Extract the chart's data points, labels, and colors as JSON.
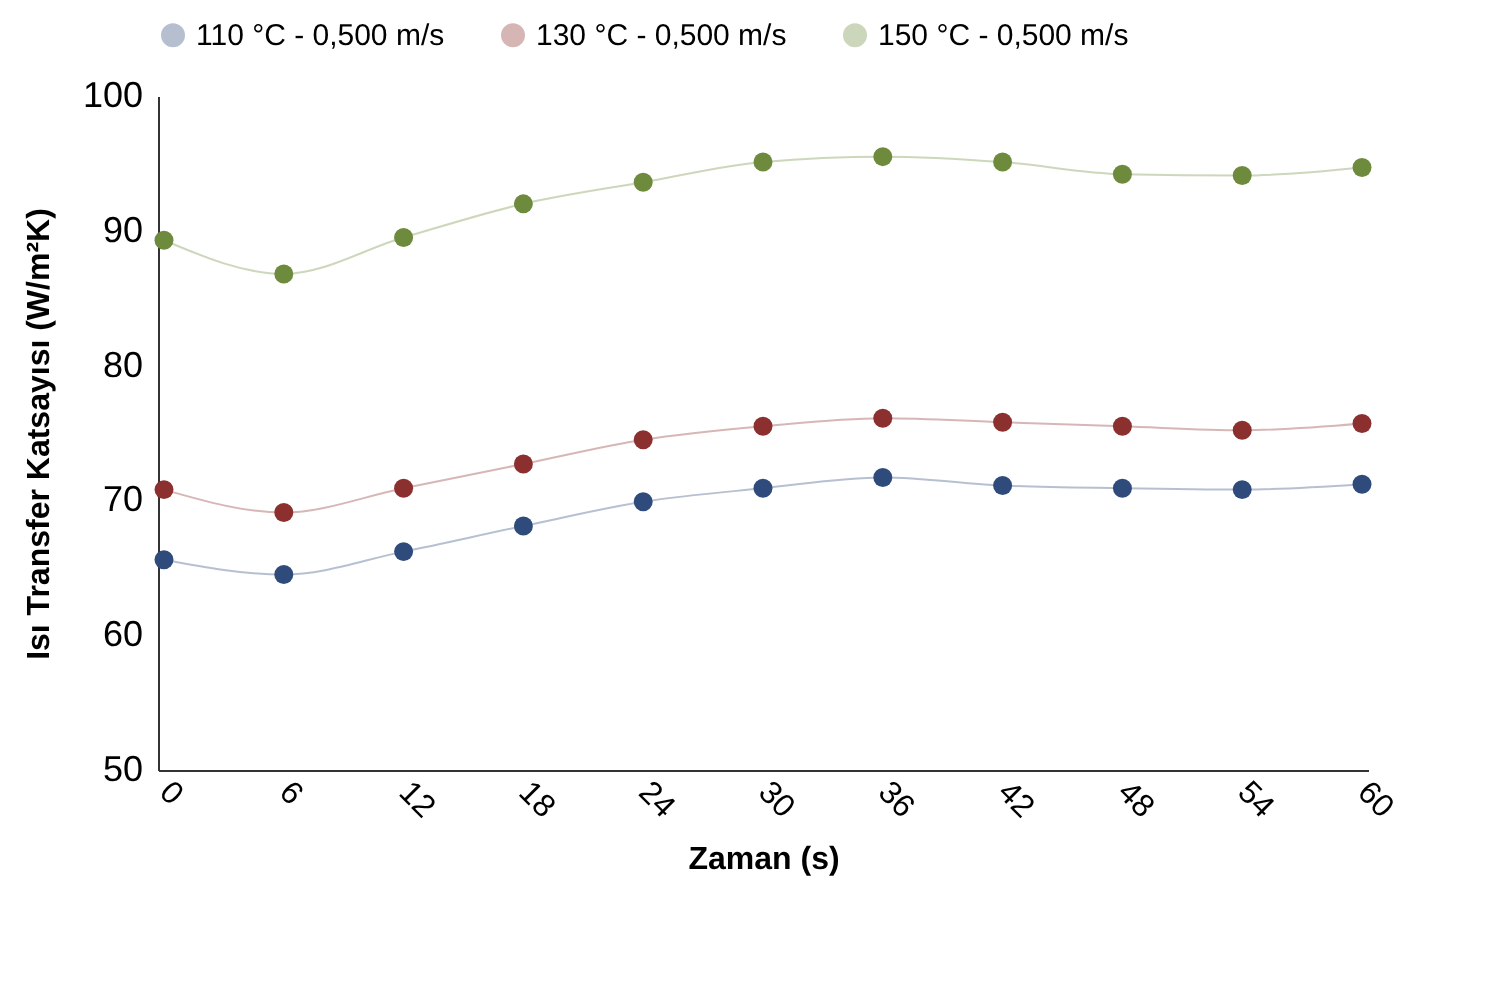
{
  "chart_data": {
    "type": "line",
    "xlabel": "Zaman (s)",
    "ylabel": "Isı Transfer Katsayısı (W/m²K)",
    "categories": [
      "0",
      "6",
      "12",
      "18",
      "24",
      "30",
      "36",
      "42",
      "48",
      "54",
      "60"
    ],
    "series": [
      {
        "name": "110 °C - 0,500 m/s",
        "color": "#2f4b7c",
        "values": [
          65.6,
          64.5,
          66.2,
          68.1,
          69.9,
          70.9,
          71.7,
          71.1,
          70.9,
          70.8,
          71.2
        ]
      },
      {
        "name": "130 °C - 0,500 m/s",
        "color": "#8b2f2f",
        "values": [
          70.8,
          69.1,
          70.9,
          72.7,
          74.5,
          75.5,
          76.1,
          75.8,
          75.5,
          75.2,
          75.7
        ]
      },
      {
        "name": "150 °C - 0,500 m/s",
        "color": "#6e8b3d",
        "values": [
          89.3,
          86.8,
          89.5,
          92.0,
          93.6,
          95.1,
          95.5,
          95.1,
          94.2,
          94.1,
          94.7
        ]
      }
    ],
    "ylim": [
      50,
      100
    ],
    "yticks": [
      50,
      60,
      70,
      80,
      90,
      100
    ],
    "grid": false,
    "legend": "top",
    "marker": "circle",
    "line_style": "solid"
  }
}
